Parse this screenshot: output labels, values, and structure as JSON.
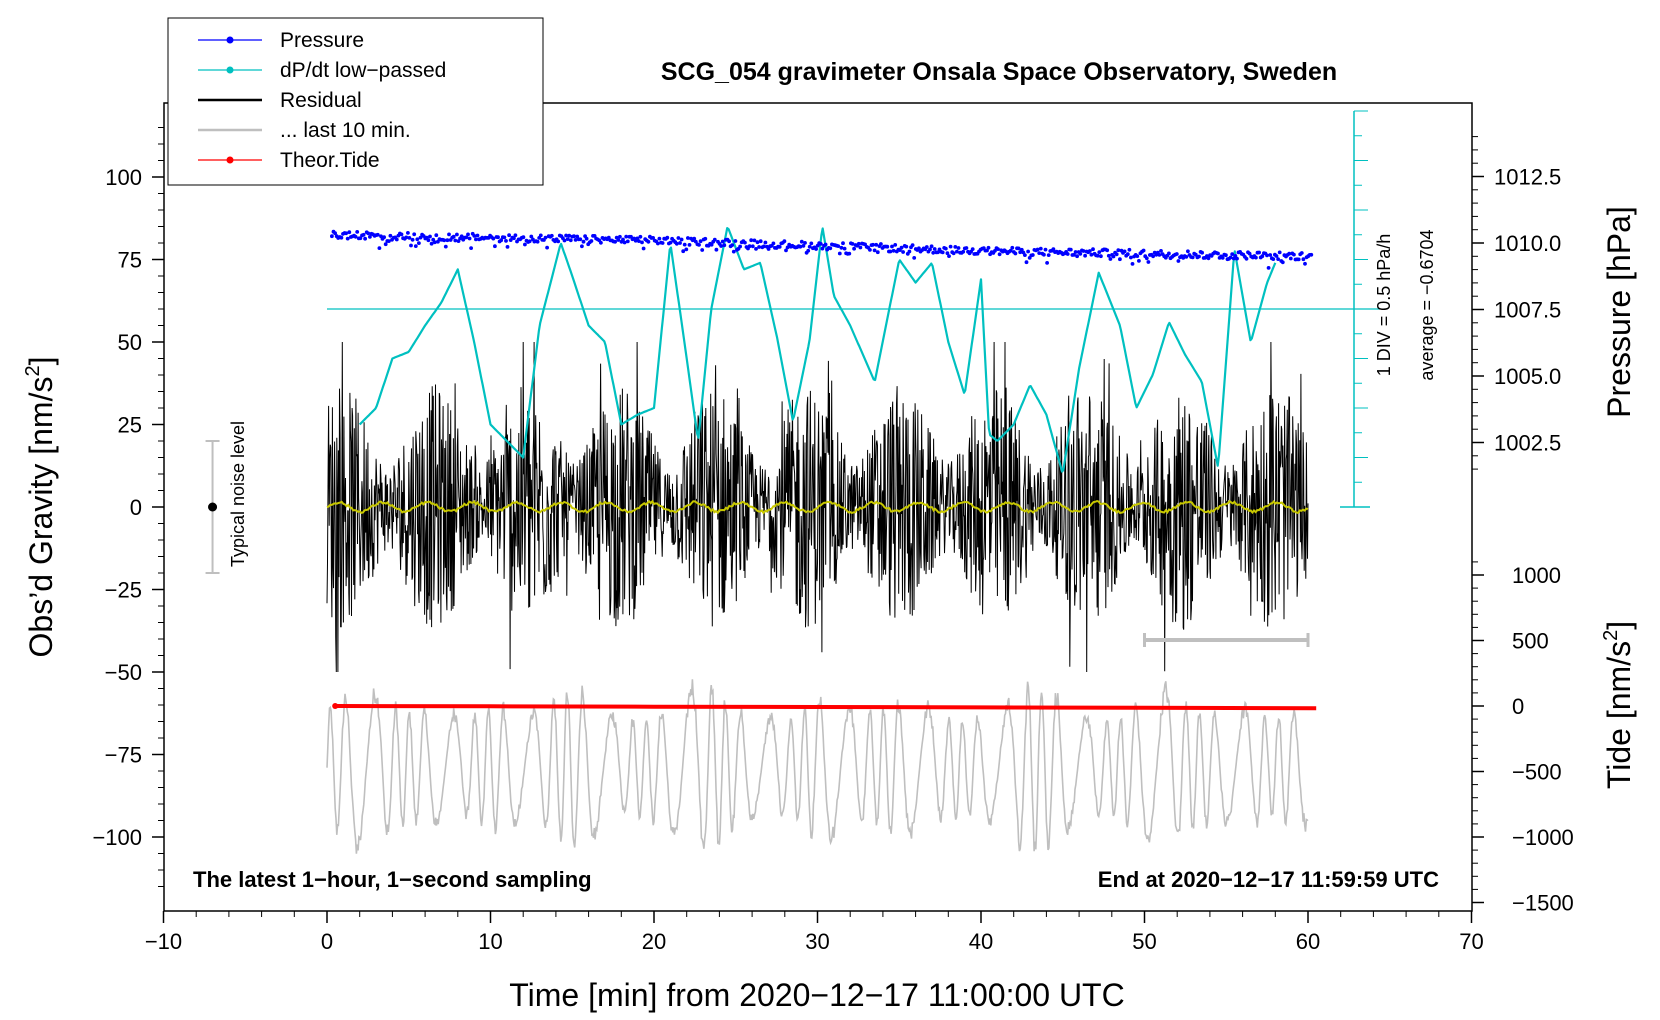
{
  "chart_data": {
    "type": "line",
    "title": "SCG_054 gravimeter Onsala Space Observatory, Sweden",
    "xlabel": "Time [min] from 2020−12−17 11:00:00 UTC",
    "ylabel_left_main": "Obs’d Gravity [nm/s",
    "ylabel_left_sup": "2",
    "ylabel_left_end": "]",
    "ylabel_right_top": "Pressure [hPa]",
    "ylabel_right_bottom_main": "Tide [nm/s",
    "ylabel_right_bottom_sup": "2",
    "ylabel_right_bottom_end": "]",
    "xlim": [
      -10,
      70
    ],
    "ylim": [
      -120,
      120
    ],
    "x_ticks": [
      "−10",
      "0",
      "10",
      "20",
      "30",
      "40",
      "50",
      "60",
      "70"
    ],
    "x_tick_values": [
      -10,
      0,
      10,
      20,
      30,
      40,
      50,
      60,
      70
    ],
    "y_ticks_left": [
      "100",
      "75",
      "50",
      "25",
      "0",
      "−25",
      "−50",
      "−75",
      "−100"
    ],
    "y_tick_values_left": [
      100,
      75,
      50,
      25,
      0,
      -25,
      -50,
      -75,
      -100
    ],
    "pressure_axis": {
      "ticks": [
        "1012.5",
        "1010.0",
        "1007.5",
        "1005.0",
        "1002.5"
      ],
      "tick_values": [
        1012.5,
        1010.0,
        1007.5,
        1005.0,
        1002.5
      ]
    },
    "tide_axis": {
      "ticks": [
        "1000",
        "500",
        "0",
        "−500",
        "−1000",
        "−1500"
      ],
      "tick_values": [
        1000,
        500,
        0,
        -500,
        -1000,
        -1500
      ]
    },
    "legend": [
      {
        "label": "Pressure",
        "color": "#0000ff",
        "style": "line-dot"
      },
      {
        "label": "dP/dt low−passed",
        "color": "#00c0c0",
        "style": "line-dot"
      },
      {
        "label": "Residual",
        "color": "#000000",
        "style": "line"
      },
      {
        "label": "... last 10 min.",
        "color": "#bfbfbf",
        "style": "line"
      },
      {
        "label": "Theor.Tide",
        "color": "#ff0000",
        "style": "line-dot"
      }
    ],
    "series": [
      {
        "name": "Pressure",
        "unit": "hPa",
        "x": [
          0,
          10,
          20,
          30,
          40,
          50,
          60
        ],
        "values": [
          1010.3,
          1010.2,
          1010.1,
          1009.9,
          1009.7,
          1009.6,
          1009.5
        ]
      },
      {
        "name": "dP/dt low-passed",
        "unit": "y-axis units",
        "x": [
          2,
          3,
          4,
          5,
          6,
          7,
          8,
          9,
          10,
          11,
          12,
          13,
          14.3,
          15,
          16,
          17,
          18,
          19,
          20,
          21,
          22,
          22.7,
          23.5,
          24.5,
          25.5,
          26.5,
          27.5,
          28.5,
          29.5,
          30.3,
          31,
          32,
          33.5,
          35,
          36,
          37,
          38,
          39,
          40,
          40.5,
          41,
          42,
          43,
          44,
          45,
          46,
          47.2,
          48.5,
          49.5,
          50.5,
          51.5,
          52.5,
          53.5,
          54.5,
          55.5,
          56.5,
          57.5,
          58
        ],
        "values": [
          25,
          30,
          45,
          47,
          55,
          62,
          72,
          50,
          25,
          20,
          15,
          55,
          80,
          70,
          55,
          50,
          25,
          28,
          30,
          80,
          45,
          20,
          60,
          85,
          72,
          74,
          52,
          26,
          50,
          85,
          64,
          55,
          38,
          75,
          68,
          74,
          50,
          34,
          69,
          22,
          20,
          25,
          37,
          28,
          10,
          42,
          71,
          55,
          30,
          40,
          56,
          46,
          38,
          12,
          78,
          50,
          68,
          74
        ]
      },
      {
        "name": "Residual",
        "unit": "nm/s2",
        "x_range": [
          0,
          60
        ],
        "envelope": [
          -50,
          50
        ],
        "mean": 0
      },
      {
        "name": "... last 10 min.",
        "unit": "nm/s2 (stretched)",
        "x_range": [
          0,
          60
        ],
        "envelope": [
          -108,
          -50
        ]
      },
      {
        "name": "Theor.Tide",
        "unit": "nm/s2",
        "x": [
          0.5,
          10,
          20,
          30,
          40,
          50,
          60.5
        ],
        "values": [
          0,
          -2,
          -5,
          -8,
          -11,
          -14,
          -17
        ]
      }
    ],
    "noise_label": "Typical noise level",
    "noise_bar": [
      -20,
      20
    ],
    "span_bar": [
      50,
      60
    ],
    "dpdt_reference": {
      "average_label": "average = −0.6704",
      "div_label": "1 DIV = 0.5 hPa/h"
    },
    "note_left": "The latest 1−hour, 1−second sampling",
    "note_right": "End at 2020−12−17 11:59:59 UTC"
  },
  "colors": {
    "pressure": "#0000ff",
    "dpdt": "#00c0c0",
    "residual": "#000000",
    "residual_mean": "#c8c800",
    "last10": "#bfbfbf",
    "tide": "#ff0000",
    "noise": "#bfbfbf",
    "span": "#bfbfbf"
  }
}
